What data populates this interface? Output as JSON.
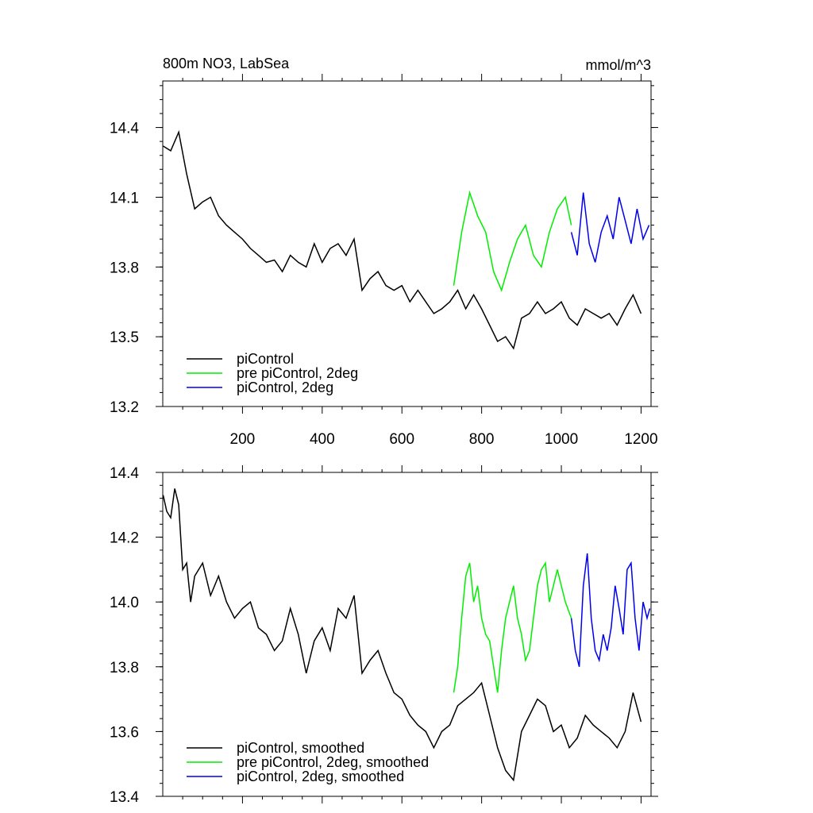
{
  "chart_data": [
    {
      "type": "line",
      "title": "800m NO3, LabSea",
      "units": "mmol/m^3",
      "xlim": [
        0,
        1225
      ],
      "ylim": [
        13.2,
        14.6
      ],
      "xticks": [
        200,
        400,
        600,
        800,
        1000,
        1200
      ],
      "yticks": [
        13.2,
        13.5,
        13.8,
        14.1,
        14.4
      ],
      "ytick_labels": [
        "13.2",
        "13.5",
        "13.8",
        "14.1",
        "14.4"
      ],
      "legend_position": "bottom-left",
      "series": [
        {
          "name": "piControl",
          "color": "#000000",
          "x": [
            1,
            20,
            40,
            60,
            80,
            100,
            120,
            140,
            160,
            180,
            200,
            220,
            240,
            260,
            280,
            300,
            320,
            340,
            360,
            380,
            400,
            420,
            440,
            460,
            480,
            500,
            520,
            540,
            560,
            580,
            600,
            620,
            640,
            660,
            680,
            700,
            720,
            740,
            760,
            780,
            800,
            820,
            840,
            860,
            880,
            900,
            920,
            940,
            960,
            980,
            1000,
            1020,
            1040,
            1060,
            1080,
            1100,
            1120,
            1140,
            1160,
            1180,
            1200
          ],
          "y": [
            14.32,
            14.3,
            14.38,
            14.2,
            14.05,
            14.08,
            14.1,
            14.02,
            13.98,
            13.95,
            13.92,
            13.88,
            13.85,
            13.82,
            13.83,
            13.78,
            13.85,
            13.82,
            13.8,
            13.9,
            13.82,
            13.88,
            13.9,
            13.85,
            13.92,
            13.7,
            13.75,
            13.78,
            13.72,
            13.7,
            13.72,
            13.65,
            13.7,
            13.65,
            13.6,
            13.62,
            13.65,
            13.7,
            13.62,
            13.68,
            13.62,
            13.55,
            13.48,
            13.5,
            13.45,
            13.58,
            13.6,
            13.65,
            13.6,
            13.62,
            13.65,
            13.58,
            13.55,
            13.62,
            13.6,
            13.58,
            13.6,
            13.55,
            13.62,
            13.68,
            13.6
          ]
        },
        {
          "name": "pre piControl, 2deg",
          "color": "#00ee00",
          "x": [
            730,
            750,
            770,
            790,
            810,
            830,
            850,
            870,
            890,
            910,
            930,
            950,
            970,
            990,
            1010,
            1025
          ],
          "y": [
            13.72,
            13.95,
            14.12,
            14.02,
            13.95,
            13.78,
            13.7,
            13.82,
            13.92,
            13.98,
            13.85,
            13.8,
            13.95,
            14.05,
            14.1,
            13.98
          ]
        },
        {
          "name": "piControl, 2deg",
          "color": "#0000ee",
          "x": [
            1025,
            1040,
            1055,
            1070,
            1085,
            1100,
            1115,
            1130,
            1145,
            1160,
            1175,
            1190,
            1205,
            1220
          ],
          "y": [
            13.95,
            13.85,
            14.12,
            13.9,
            13.82,
            13.95,
            14.02,
            13.92,
            14.1,
            14.0,
            13.9,
            14.05,
            13.92,
            13.98
          ]
        }
      ]
    },
    {
      "type": "line",
      "xlim": [
        0,
        1225
      ],
      "ylim": [
        13.4,
        14.4
      ],
      "xticks": [
        200,
        400,
        600,
        800,
        1000,
        1200
      ],
      "yticks": [
        13.4,
        13.6,
        13.8,
        14.0,
        14.2,
        14.4
      ],
      "ytick_labels": [
        "13.4",
        "13.6",
        "13.8",
        "14.0",
        "14.2",
        "14.4"
      ],
      "legend_position": "bottom-left",
      "series": [
        {
          "name": "piControl, smoothed",
          "color": "#000000",
          "x": [
            1,
            10,
            20,
            30,
            40,
            50,
            60,
            70,
            80,
            100,
            120,
            140,
            160,
            180,
            200,
            220,
            240,
            260,
            280,
            300,
            320,
            340,
            360,
            380,
            400,
            420,
            440,
            460,
            480,
            500,
            520,
            540,
            560,
            580,
            600,
            620,
            640,
            660,
            680,
            700,
            720,
            740,
            760,
            780,
            800,
            820,
            840,
            860,
            880,
            900,
            920,
            940,
            960,
            980,
            1000,
            1020,
            1040,
            1060,
            1080,
            1100,
            1120,
            1140,
            1160,
            1180,
            1200
          ],
          "y": [
            14.33,
            14.28,
            14.26,
            14.35,
            14.3,
            14.1,
            14.12,
            14.0,
            14.08,
            14.12,
            14.02,
            14.08,
            14.0,
            13.95,
            13.98,
            14.0,
            13.92,
            13.9,
            13.85,
            13.88,
            13.98,
            13.9,
            13.78,
            13.88,
            13.92,
            13.85,
            13.98,
            13.95,
            14.02,
            13.78,
            13.82,
            13.85,
            13.78,
            13.72,
            13.7,
            13.65,
            13.62,
            13.6,
            13.55,
            13.6,
            13.62,
            13.68,
            13.7,
            13.72,
            13.75,
            13.65,
            13.55,
            13.48,
            13.45,
            13.6,
            13.65,
            13.7,
            13.68,
            13.6,
            13.62,
            13.55,
            13.58,
            13.65,
            13.62,
            13.6,
            13.58,
            13.55,
            13.6,
            13.72,
            13.63
          ]
        },
        {
          "name": "pre piControl, 2deg, smoothed",
          "color": "#00ee00",
          "x": [
            730,
            740,
            750,
            760,
            770,
            780,
            790,
            800,
            810,
            820,
            830,
            840,
            850,
            860,
            870,
            880,
            890,
            900,
            910,
            920,
            930,
            940,
            950,
            960,
            970,
            980,
            990,
            1000,
            1010,
            1025
          ],
          "y": [
            13.72,
            13.8,
            13.95,
            14.08,
            14.12,
            14.0,
            14.05,
            13.95,
            13.9,
            13.88,
            13.8,
            13.72,
            13.85,
            13.95,
            14.0,
            14.05,
            13.95,
            13.9,
            13.82,
            13.85,
            13.95,
            14.05,
            14.1,
            14.12,
            14.0,
            14.05,
            14.1,
            14.05,
            14.0,
            13.95
          ]
        },
        {
          "name": "piControl, 2deg, smoothed",
          "color": "#0000ee",
          "x": [
            1025,
            1035,
            1045,
            1055,
            1065,
            1075,
            1085,
            1095,
            1105,
            1115,
            1125,
            1135,
            1145,
            1155,
            1165,
            1175,
            1185,
            1195,
            1205,
            1215,
            1222
          ],
          "y": [
            13.95,
            13.85,
            13.8,
            14.05,
            14.15,
            13.95,
            13.85,
            13.82,
            13.9,
            13.85,
            13.92,
            14.05,
            13.98,
            13.9,
            14.1,
            14.12,
            13.95,
            13.85,
            14.0,
            13.95,
            13.98
          ]
        }
      ]
    }
  ]
}
